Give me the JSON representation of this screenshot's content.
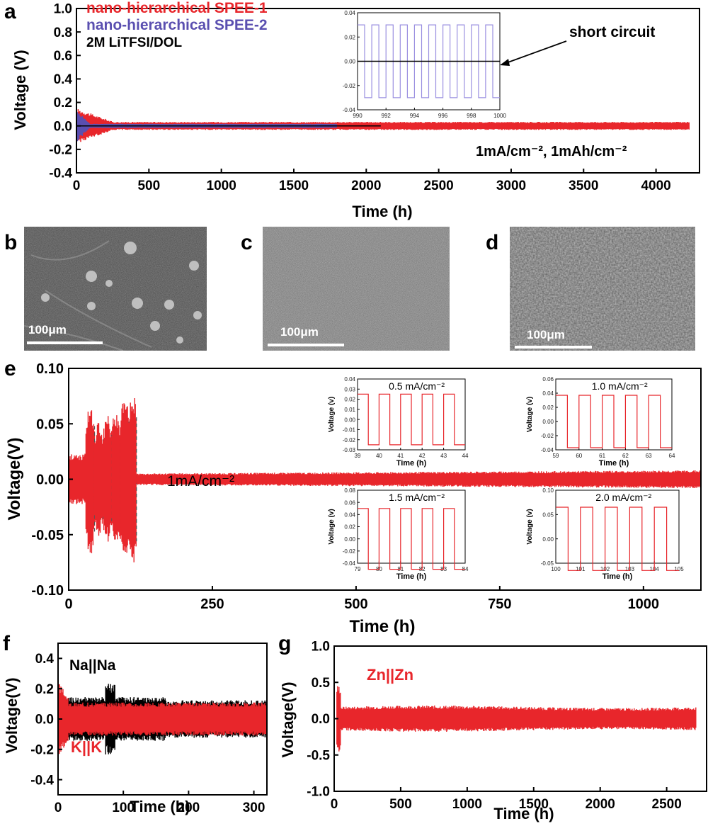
{
  "panel_labels": [
    "a",
    "b",
    "c",
    "d",
    "e",
    "f",
    "g"
  ],
  "sem_images": [
    {
      "panel": "b",
      "scale_bar": "100μm"
    },
    {
      "panel": "c",
      "scale_bar": "100μm"
    },
    {
      "panel": "d",
      "scale_bar": "100μm"
    }
  ],
  "colors": {
    "red": "#e8262b",
    "blue": "#5a4fb0",
    "inset_blue": "#9a8fe0",
    "black": "#000000"
  },
  "chart_data": [
    {
      "panel": "a",
      "type": "line",
      "xlabel": "Time (h)",
      "ylabel": "Voltage (V)",
      "xlim": [
        0,
        4300
      ],
      "ylim": [
        -0.4,
        1.0
      ],
      "xticks": [
        "0",
        "500",
        "1000",
        "1500",
        "2000",
        "2500",
        "3000",
        "3500",
        "4000"
      ],
      "yticks": [
        "-0.4",
        "-0.2",
        "0.0",
        "0.2",
        "0.4",
        "0.6",
        "0.8",
        "1.0"
      ],
      "series": [
        {
          "name": "nano-hierarchical SPEE-1",
          "color": "#e8262b",
          "x_end": 4230,
          "amplitude": 0.03,
          "peak": 0.2
        },
        {
          "name": "nano-hierarchical SPEE-2",
          "color": "#5a4fb0",
          "x_end": 1800,
          "amplitude": 0.02,
          "peak": 0.12
        },
        {
          "name": "2M LiTFSI/DOL",
          "color": "#000000",
          "x_end": 2100,
          "amplitude": 0.01,
          "peak": 0.05
        }
      ],
      "annotations": [
        "short circuit",
        "1mA/cm⁻², 1mAh/cm⁻²"
      ],
      "inset": {
        "xlim": [
          990,
          1000
        ],
        "ylim": [
          -0.04,
          0.04
        ],
        "xticks": [
          "990",
          "992",
          "994",
          "996",
          "998",
          "1000"
        ],
        "yticks": [
          "-0.04",
          "-0.02",
          "0.00",
          "0.02",
          "0.04"
        ],
        "blue_amplitude": 0.03,
        "black_level": 0.0
      }
    },
    {
      "panel": "e",
      "type": "line",
      "xlabel": "Time (h)",
      "ylabel": "Voltage(V)",
      "xlim": [
        0,
        1100
      ],
      "ylim": [
        -0.1,
        0.1
      ],
      "xticks": [
        "0",
        "250",
        "500",
        "750",
        "1000"
      ],
      "yticks": [
        "-0.10",
        "-0.05",
        "0.00",
        "0.05",
        "0.10"
      ],
      "series": [
        {
          "name": "",
          "color": "#e8262b",
          "x_end": 1100,
          "amplitude": 0.005
        }
      ],
      "rate_steps": [
        {
          "x": [
            30,
            45
          ],
          "v": 0.06
        },
        {
          "x": [
            45,
            60
          ],
          "v": 0.045
        },
        {
          "x": [
            60,
            75
          ],
          "v": 0.05
        },
        {
          "x": [
            75,
            90
          ],
          "v": 0.055
        },
        {
          "x": [
            90,
            105
          ],
          "v": 0.065
        },
        {
          "x": [
            105,
            118
          ],
          "v": 0.07
        }
      ],
      "annotations": [
        "1mA/cm⁻²"
      ],
      "insets": [
        {
          "label": "0.5 mA/cm⁻²",
          "xlim": [
            39,
            44
          ],
          "ylim": [
            -0.03,
            0.04
          ],
          "xticks": [
            "39",
            "40",
            "41",
            "42",
            "43",
            "44"
          ],
          "yticks": [
            "-0.03",
            "-0.02",
            "-0.01",
            "0.00",
            "0.01",
            "0.02",
            "0.03",
            "0.04"
          ],
          "amplitude": 0.025,
          "xlabel": "Time (h)",
          "ylabel": "Voltage (v)"
        },
        {
          "label": "1.0 mA/cm⁻²",
          "xlim": [
            59,
            64
          ],
          "ylim": [
            -0.04,
            0.06
          ],
          "xticks": [
            "59",
            "60",
            "61",
            "62",
            "63",
            "64"
          ],
          "yticks": [
            "-0.04",
            "-0.02",
            "0.00",
            "0.02",
            "0.04",
            "0.06"
          ],
          "amplitude": 0.037,
          "xlabel": "Time (h)",
          "ylabel": "Voltage (v)"
        },
        {
          "label": "1.5 mA/cm⁻²",
          "xlim": [
            79,
            84
          ],
          "ylim": [
            -0.04,
            0.08
          ],
          "xticks": [
            "79",
            "80",
            "81",
            "82",
            "83",
            "84"
          ],
          "yticks": [
            "-0.04",
            "-0.02",
            "0.00",
            "0.02",
            "0.04",
            "0.06",
            "0.08"
          ],
          "amplitude": 0.05,
          "xlabel": "Time (h)",
          "ylabel": "Voltage (v)"
        },
        {
          "label": "2.0 mA/cm⁻²",
          "xlim": [
            100,
            105
          ],
          "ylim": [
            -0.05,
            0.1
          ],
          "xticks": [
            "100",
            "101",
            "102",
            "103",
            "104",
            "105"
          ],
          "yticks": [
            "-0.05",
            "0.00",
            "0.05",
            "0.10"
          ],
          "amplitude": 0.065,
          "xlabel": "Time (h)",
          "ylabel": "Voltage (v)"
        }
      ]
    },
    {
      "panel": "f",
      "type": "line",
      "xlabel": "Time (h)",
      "ylabel": "Voltage(V)",
      "xlim": [
        0,
        320
      ],
      "ylim": [
        -0.5,
        0.5
      ],
      "xticks": [
        "0",
        "100",
        "200",
        "300"
      ],
      "yticks": [
        "-0.4",
        "-0.2",
        "0.0",
        "0.2",
        "0.4"
      ],
      "series": [
        {
          "name": "Na||Na",
          "color": "#000000",
          "amplitude": 0.12
        },
        {
          "name": "K||K",
          "color": "#e8262b",
          "amplitude": 0.1
        }
      ]
    },
    {
      "panel": "g",
      "type": "line",
      "xlabel": "Time (h)",
      "ylabel": "Voltage(V)",
      "xlim": [
        0,
        2800
      ],
      "ylim": [
        -1.0,
        1.0
      ],
      "xticks": [
        "0",
        "500",
        "1000",
        "1500",
        "2000",
        "2500"
      ],
      "yticks": [
        "-1.0",
        "-0.5",
        "0.0",
        "0.5",
        "1.0"
      ],
      "series": [
        {
          "name": "Zn||Zn",
          "color": "#e8262b",
          "x_end": 2720,
          "amplitude": 0.15
        }
      ]
    }
  ]
}
